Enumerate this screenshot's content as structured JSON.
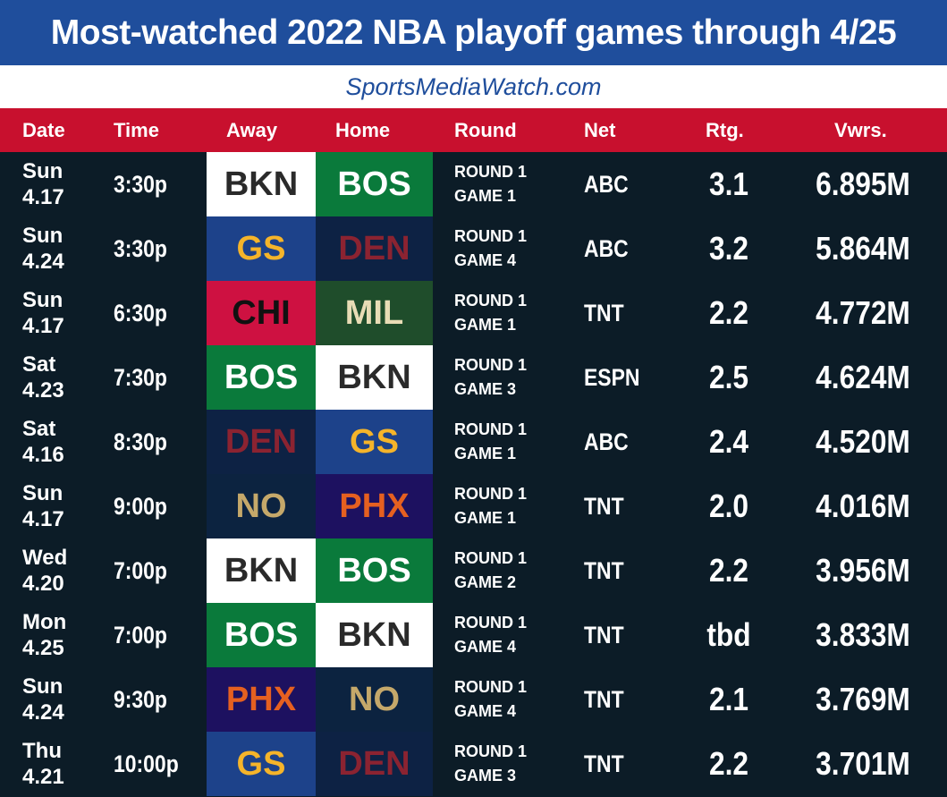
{
  "title": "Most-watched 2022 NBA playoff games through 4/25",
  "source": "SportsMediaWatch.com",
  "colors": {
    "title_bg": "#1f4e9c",
    "header_bg": "#c8102e",
    "body_bg": "#0c1c27"
  },
  "headers": {
    "date": "Date",
    "time": "Time",
    "away": "Away",
    "home": "Home",
    "round": "Round",
    "net": "Net",
    "rtg": "Rtg.",
    "vwrs": "Vwrs."
  },
  "team_colors": {
    "BKN": {
      "bg": "#ffffff",
      "fg": "#2a2a2a"
    },
    "BOS": {
      "bg": "#0a7a3b",
      "fg": "#ffffff"
    },
    "GS": {
      "bg": "#1d428a",
      "fg": "#f5b42a"
    },
    "DEN": {
      "bg": "#0d2244",
      "fg": "#8b2331"
    },
    "CHI": {
      "bg": "#ce1141",
      "fg": "#111111"
    },
    "MIL": {
      "bg": "#1f4d2b",
      "fg": "#e8dcb5"
    },
    "NO": {
      "bg": "#0c2340",
      "fg": "#c5a86a"
    },
    "PHX": {
      "bg": "#1d1160",
      "fg": "#e56020"
    }
  },
  "rows": [
    {
      "day": "Sun",
      "date": "4.17",
      "time": "3:30p",
      "away": "BKN",
      "home": "BOS",
      "round": "ROUND 1",
      "game": "GAME 1",
      "net": "ABC",
      "rtg": "3.1",
      "vwrs": "6.895M"
    },
    {
      "day": "Sun",
      "date": "4.24",
      "time": "3:30p",
      "away": "GS",
      "home": "DEN",
      "round": "ROUND 1",
      "game": "GAME 4",
      "net": "ABC",
      "rtg": "3.2",
      "vwrs": "5.864M"
    },
    {
      "day": "Sun",
      "date": "4.17",
      "time": "6:30p",
      "away": "CHI",
      "home": "MIL",
      "round": "ROUND 1",
      "game": "GAME 1",
      "net": "TNT",
      "rtg": "2.2",
      "vwrs": "4.772M"
    },
    {
      "day": "Sat",
      "date": "4.23",
      "time": "7:30p",
      "away": "BOS",
      "home": "BKN",
      "round": "ROUND 1",
      "game": "GAME 3",
      "net": "ESPN",
      "rtg": "2.5",
      "vwrs": "4.624M"
    },
    {
      "day": "Sat",
      "date": "4.16",
      "time": "8:30p",
      "away": "DEN",
      "home": "GS",
      "round": "ROUND 1",
      "game": "GAME 1",
      "net": "ABC",
      "rtg": "2.4",
      "vwrs": "4.520M"
    },
    {
      "day": "Sun",
      "date": "4.17",
      "time": "9:00p",
      "away": "NO",
      "home": "PHX",
      "round": "ROUND 1",
      "game": "GAME 1",
      "net": "TNT",
      "rtg": "2.0",
      "vwrs": "4.016M"
    },
    {
      "day": "Wed",
      "date": "4.20",
      "time": "7:00p",
      "away": "BKN",
      "home": "BOS",
      "round": "ROUND 1",
      "game": "GAME 2",
      "net": "TNT",
      "rtg": "2.2",
      "vwrs": "3.956M"
    },
    {
      "day": "Mon",
      "date": "4.25",
      "time": "7:00p",
      "away": "BOS",
      "home": "BKN",
      "round": "ROUND 1",
      "game": "GAME 4",
      "net": "TNT",
      "rtg": "tbd",
      "vwrs": "3.833M"
    },
    {
      "day": "Sun",
      "date": "4.24",
      "time": "9:30p",
      "away": "PHX",
      "home": "NO",
      "round": "ROUND 1",
      "game": "GAME 4",
      "net": "TNT",
      "rtg": "2.1",
      "vwrs": "3.769M"
    },
    {
      "day": "Thu",
      "date": "4.21",
      "time": "10:00p",
      "away": "GS",
      "home": "DEN",
      "round": "ROUND 1",
      "game": "GAME 3",
      "net": "TNT",
      "rtg": "2.2",
      "vwrs": "3.701M"
    }
  ]
}
